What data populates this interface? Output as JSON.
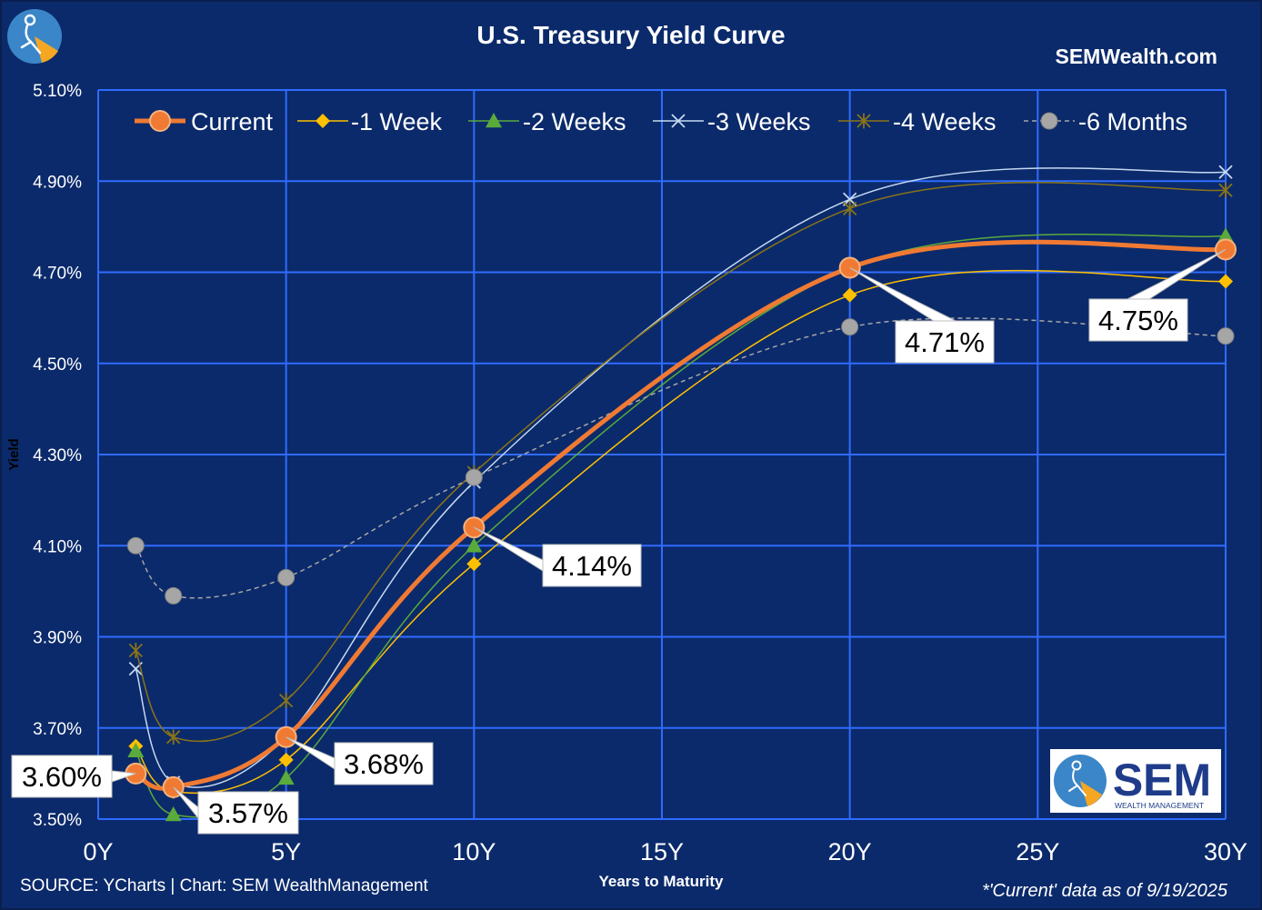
{
  "header": {
    "title": "U.S. Treasury Yield Curve",
    "site": "SEMWealth.com"
  },
  "footer": {
    "source": "SOURCE: YCharts | Chart: SEM WealthManagement",
    "note": "*'Current' data as of 9/19/2025"
  },
  "logo": {
    "name": "SEM",
    "subtitle": "WEALTH MANAGEMENT"
  },
  "colors": {
    "background": "#0b2a6b",
    "grid": "#2f6bff",
    "current": "#f07a33",
    "week1": "#ffc000",
    "week2": "#5aaa3c",
    "week3": "#c5d9f1",
    "week4": "#8a7417",
    "month6": "#a6a6a6"
  },
  "chart_data": {
    "type": "line",
    "title": "U.S. Treasury Yield Curve",
    "xlabel": "Years to Maturity",
    "ylabel": "Yield",
    "xlim": [
      0,
      30
    ],
    "ylim": [
      3.5,
      5.1
    ],
    "x_ticks": [
      0,
      5,
      10,
      15,
      20,
      25,
      30
    ],
    "x_tick_labels": [
      "0Y",
      "5Y",
      "10Y",
      "15Y",
      "20Y",
      "25Y",
      "30Y"
    ],
    "y_ticks": [
      3.5,
      3.7,
      3.9,
      4.1,
      4.3,
      4.5,
      4.7,
      4.9,
      5.1
    ],
    "y_tick_labels": [
      "3.50%",
      "3.70%",
      "3.90%",
      "4.10%",
      "4.30%",
      "4.50%",
      "4.70%",
      "4.90%",
      "5.10%"
    ],
    "grid": true,
    "legend_position": "top",
    "x": [
      1,
      2,
      5,
      10,
      20,
      30
    ],
    "series": [
      {
        "name": "Current",
        "key": "current",
        "values": [
          3.6,
          3.57,
          3.68,
          4.14,
          4.71,
          4.75
        ]
      },
      {
        "name": "-1 Week",
        "key": "week1",
        "values": [
          3.66,
          3.56,
          3.63,
          4.06,
          4.65,
          4.68
        ]
      },
      {
        "name": "-2 Weeks",
        "key": "week2",
        "values": [
          3.65,
          3.51,
          3.59,
          4.1,
          4.71,
          4.78
        ]
      },
      {
        "name": "-3 Weeks",
        "key": "week3",
        "values": [
          3.83,
          3.58,
          3.68,
          4.24,
          4.86,
          4.92
        ]
      },
      {
        "name": "-4 Weeks",
        "key": "week4",
        "values": [
          3.87,
          3.68,
          3.76,
          4.26,
          4.84,
          4.88
        ]
      },
      {
        "name": "-6 Months",
        "key": "month6",
        "values": [
          4.1,
          3.99,
          4.03,
          4.25,
          4.58,
          4.56
        ]
      }
    ],
    "annotations": [
      {
        "text": "3.60%",
        "x": 1,
        "y": 3.6
      },
      {
        "text": "3.57%",
        "x": 2,
        "y": 3.57
      },
      {
        "text": "3.68%",
        "x": 5,
        "y": 3.68
      },
      {
        "text": "4.14%",
        "x": 10,
        "y": 4.14
      },
      {
        "text": "4.71%",
        "x": 20,
        "y": 4.71
      },
      {
        "text": "4.75%",
        "x": 30,
        "y": 4.75
      }
    ]
  }
}
